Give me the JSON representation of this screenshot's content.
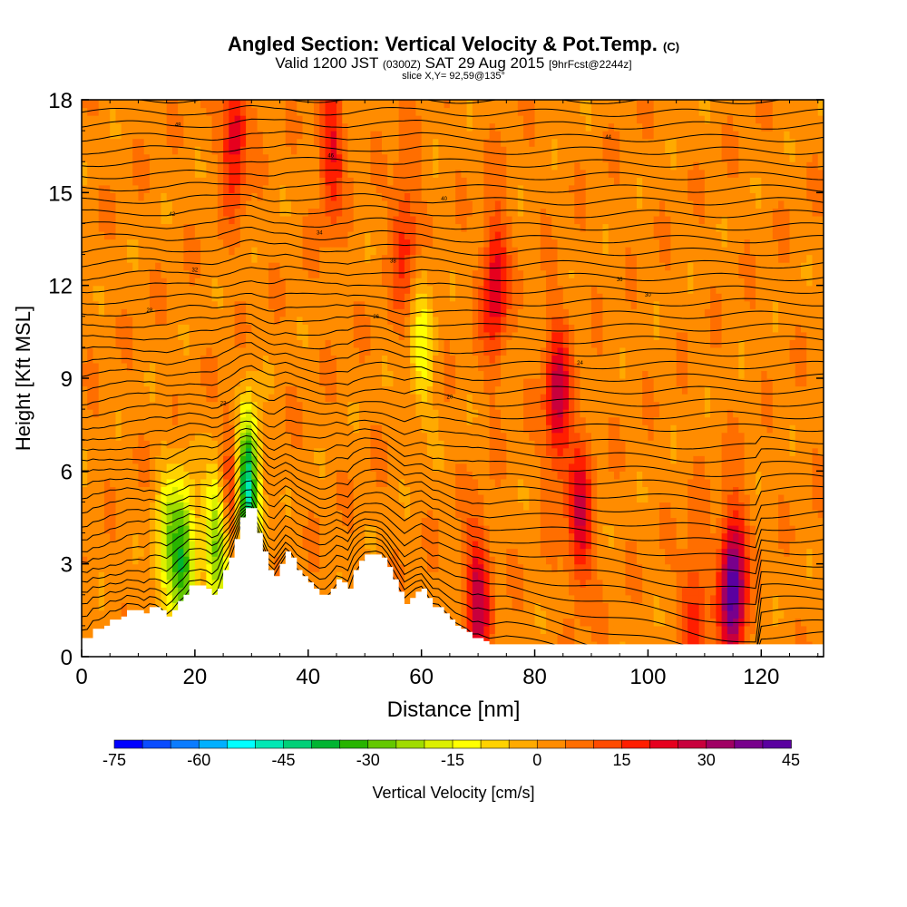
{
  "title": {
    "main": "Angled Section: Vertical Velocity & Pot.Temp.",
    "main_unit": "(C)",
    "line2_a": "Valid 1200 JST",
    "line2_b": "(0300Z)",
    "line2_c": "SAT 29 Aug 2015",
    "line2_d": "[9hrFcst@2244z]",
    "line3": "slice X,Y= 92,59@135°"
  },
  "chart_data": {
    "type": "heatmap",
    "xlabel": "Distance [nm]",
    "ylabel": "Height [Kft MSL]",
    "xlim": [
      0,
      131
    ],
    "ylim": [
      0,
      18
    ],
    "x_ticks": [
      0,
      20,
      40,
      60,
      80,
      100,
      120
    ],
    "y_ticks": [
      0,
      3,
      6,
      9,
      12,
      15,
      18
    ],
    "colorbar": {
      "label": "Vertical Velocity [cm/s]",
      "min": -75,
      "max": 45,
      "step": 5,
      "tick_values": [
        -75,
        -60,
        -45,
        -30,
        -15,
        0,
        15,
        30,
        45
      ],
      "colors": [
        "#0000ff",
        "#0a4cff",
        "#0a7cff",
        "#00b0ff",
        "#00ffff",
        "#00e8b4",
        "#00d078",
        "#00b432",
        "#28b400",
        "#64c800",
        "#a0dc00",
        "#dcf000",
        "#ffff00",
        "#ffd200",
        "#ffaa00",
        "#ff8c00",
        "#ff6e00",
        "#ff4b00",
        "#ff1e00",
        "#e6001e",
        "#c8003c",
        "#a00064",
        "#78008c",
        "#5a00a0"
      ]
    },
    "terrain_profile": {
      "x": [
        0,
        1,
        2,
        3,
        4,
        5,
        6,
        7,
        8,
        9,
        10,
        11,
        12,
        13,
        14,
        15,
        16,
        17,
        18,
        19,
        20,
        21,
        22,
        23,
        24,
        25,
        26,
        27,
        28,
        29,
        30,
        31,
        32,
        33,
        34,
        35,
        36,
        37,
        38,
        39,
        40,
        41,
        42,
        43,
        44,
        45,
        46,
        47,
        48,
        49,
        50,
        51,
        52,
        53,
        54,
        55,
        56,
        57,
        58,
        59,
        60,
        61,
        62,
        63,
        64,
        65,
        66,
        67,
        68,
        69,
        70,
        71,
        72,
        73,
        74,
        75,
        76,
        77,
        78,
        79,
        80,
        81,
        82,
        83,
        84,
        85,
        86,
        87,
        88,
        89,
        90,
        91,
        92,
        93,
        94,
        95,
        96,
        97,
        98,
        99,
        100,
        101,
        102,
        103,
        104,
        105,
        106,
        107,
        108,
        109,
        110,
        111,
        112,
        113,
        114,
        115,
        116,
        117,
        118,
        119,
        120,
        121,
        122,
        123,
        124,
        125,
        126,
        127,
        128,
        129,
        130,
        131
      ],
      "height_kft": [
        0.6,
        0.6,
        0.9,
        0.9,
        1.0,
        1.2,
        1.2,
        1.3,
        1.5,
        1.5,
        1.5,
        1.4,
        1.6,
        1.6,
        1.5,
        1.3,
        1.5,
        1.8,
        2.0,
        2.3,
        2.3,
        2.3,
        2.2,
        2.0,
        2.2,
        2.8,
        3.2,
        3.8,
        4.5,
        4.8,
        4.8,
        4.0,
        3.4,
        2.8,
        2.6,
        3.0,
        3.4,
        3.2,
        2.8,
        2.6,
        2.4,
        2.2,
        2.0,
        2.0,
        2.2,
        2.5,
        2.4,
        2.2,
        2.8,
        3.1,
        3.3,
        3.3,
        3.3,
        3.2,
        2.9,
        2.5,
        2.1,
        1.7,
        1.9,
        2.1,
        2.2,
        1.9,
        1.6,
        1.6,
        1.4,
        1.2,
        1.0,
        0.9,
        0.8,
        0.6,
        0.6,
        0.5,
        0.4,
        0.4,
        0.4,
        0.4,
        0.4,
        0.4,
        0.4,
        0.4,
        0.4,
        0.4,
        0.4,
        0.4,
        0.4,
        0.4,
        0.4,
        0.4,
        0.4,
        0.4,
        0.4,
        0.4,
        0.4,
        0.4,
        0.4,
        0.4,
        0.4,
        0.4,
        0.4,
        0.4,
        0.4,
        0.4,
        0.4,
        0.4,
        0.4,
        0.4,
        0.4,
        0.4,
        0.4,
        0.4,
        0.4,
        0.4,
        0.4,
        0.4,
        0.4,
        0.4,
        0.4,
        0.4,
        0.4,
        0.4,
        0.4,
        0.4,
        0.4,
        0.4,
        0.4,
        0.4,
        0.4,
        0.4,
        0.4,
        0.4,
        0.4,
        0.4
      ]
    },
    "updraft_cores": [
      {
        "x": 27,
        "y": 17.0,
        "peak_cms": 22
      },
      {
        "x": 27,
        "y": 5.5,
        "peak_cms": 30
      },
      {
        "x": 44,
        "y": 16.5,
        "peak_cms": 18
      },
      {
        "x": 57,
        "y": 13.5,
        "peak_cms": 15
      },
      {
        "x": 73,
        "y": 12.0,
        "peak_cms": 22
      },
      {
        "x": 84,
        "y": 8.3,
        "peak_cms": 25
      },
      {
        "x": 88,
        "y": 4.5,
        "peak_cms": 22
      },
      {
        "x": 70,
        "y": 1.8,
        "peak_cms": 25
      },
      {
        "x": 115,
        "y": 2.2,
        "peak_cms": 42
      },
      {
        "x": 108,
        "y": 1.3,
        "peak_cms": 15
      }
    ],
    "downdraft_cores": [
      {
        "x": 29,
        "y": 5.5,
        "peak_cms": -60
      },
      {
        "x": 18,
        "y": 3.2,
        "peak_cms": -35
      },
      {
        "x": 24,
        "y": 3.8,
        "peak_cms": -30
      },
      {
        "x": 15,
        "y": 3.5,
        "peak_cms": -20
      },
      {
        "x": 60,
        "y": 10.0,
        "peak_cms": -15
      }
    ],
    "isentrope_labels": [
      "48",
      "46",
      "44",
      "42",
      "40",
      "38",
      "36",
      "34",
      "32",
      "30",
      "28",
      "26",
      "24",
      "22",
      "20"
    ]
  }
}
